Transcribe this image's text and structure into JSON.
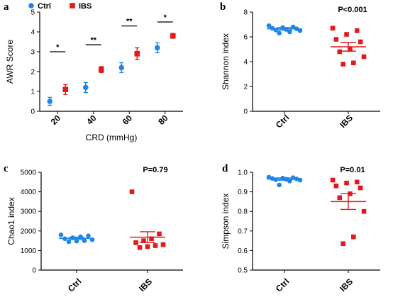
{
  "colors": {
    "ctrl": "#1f86e6",
    "ibs": "#e3191b",
    "axis": "#000000"
  },
  "chart_data": [
    {
      "panel": "a",
      "type": "scatter",
      "xlabel": "CRD (mmHg)",
      "ylabel": "AWR Score",
      "categories": [
        "20",
        "40",
        "60",
        "80"
      ],
      "ylim": [
        0,
        5
      ],
      "yticks": [
        "0",
        "1",
        "2",
        "3",
        "4",
        "5"
      ],
      "legend": {
        "position": "top-left",
        "entries": [
          "Ctrl",
          "IBS"
        ]
      },
      "series": [
        {
          "name": "Ctrl",
          "marker": "circle",
          "mean": [
            0.5,
            1.2,
            2.2,
            3.2
          ],
          "err": [
            0.2,
            0.25,
            0.25,
            0.25
          ]
        },
        {
          "name": "IBS",
          "marker": "square",
          "mean": [
            1.1,
            2.1,
            2.9,
            3.8
          ],
          "err": [
            0.25,
            0.15,
            0.3,
            0.12
          ]
        }
      ],
      "significance": [
        {
          "category": "20",
          "label": "*",
          "y": 3.0
        },
        {
          "category": "40",
          "label": "**",
          "y": 3.35
        },
        {
          "category": "60",
          "label": "**",
          "y": 4.3
        },
        {
          "category": "80",
          "label": "*",
          "y": 4.5
        }
      ]
    },
    {
      "panel": "b",
      "type": "scatter",
      "xlabel": "",
      "ylabel": "Shannon index",
      "categories": [
        "Ctrl",
        "IBS"
      ],
      "ylim": [
        0,
        8
      ],
      "yticks": [
        "0",
        "2",
        "4",
        "6",
        "8"
      ],
      "annotation": "P<0.001",
      "series": [
        {
          "name": "Ctrl",
          "marker": "circle",
          "values": [
            6.9,
            6.8,
            6.75,
            6.7,
            6.65,
            6.6,
            6.55,
            6.5,
            6.4,
            6.3
          ],
          "mean": 6.65,
          "err": 0.1
        },
        {
          "name": "IBS",
          "marker": "square",
          "values": [
            6.7,
            6.5,
            6.2,
            5.8,
            5.6,
            5.0,
            4.8,
            4.4,
            3.9,
            3.8
          ],
          "mean": 5.2,
          "err": 0.35
        }
      ]
    },
    {
      "panel": "c",
      "type": "scatter",
      "xlabel": "",
      "ylabel": "Chao1 index",
      "categories": [
        "Ctrl",
        "IBS"
      ],
      "ylim": [
        0,
        5000
      ],
      "yticks": [
        "0",
        "1000",
        "2000",
        "3000",
        "4000",
        "5000"
      ],
      "annotation": "P=0.79",
      "series": [
        {
          "name": "Ctrl",
          "marker": "circle",
          "values": [
            1800,
            1750,
            1700,
            1650,
            1600,
            1550,
            1500,
            1480,
            1450
          ],
          "mean": 1620,
          "err": 60
        },
        {
          "name": "IBS",
          "marker": "square",
          "values": [
            4000,
            1850,
            1600,
            1500,
            1400,
            1300,
            1250,
            1200,
            1150
          ],
          "mean": 1680,
          "err": 280
        }
      ]
    },
    {
      "panel": "d",
      "type": "scatter",
      "xlabel": "",
      "ylabel": "Simpson index",
      "categories": [
        "Ctrl",
        "IBS"
      ],
      "ylim": [
        0.5,
        1.0
      ],
      "yticks": [
        "0.5",
        "0.6",
        "0.7",
        "0.8",
        "0.9",
        "1.0"
      ],
      "annotation": "P=0.01",
      "series": [
        {
          "name": "Ctrl",
          "marker": "circle",
          "values": [
            0.975,
            0.972,
            0.97,
            0.968,
            0.966,
            0.964,
            0.962,
            0.96,
            0.955,
            0.935
          ],
          "mean": 0.965,
          "err": 0.006
        },
        {
          "name": "IBS",
          "marker": "square",
          "values": [
            0.96,
            0.95,
            0.945,
            0.93,
            0.92,
            0.89,
            0.87,
            0.8,
            0.67,
            0.635
          ],
          "mean": 0.85,
          "err": 0.04
        }
      ]
    }
  ]
}
